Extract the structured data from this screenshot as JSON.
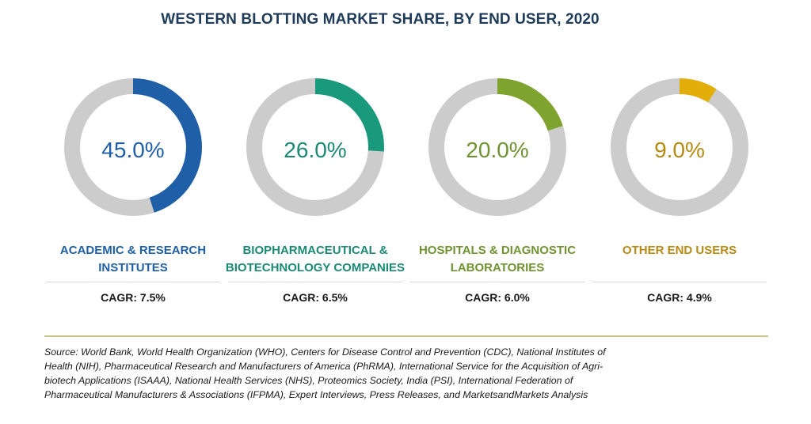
{
  "title": "WESTERN BLOTTING MARKET SHARE, BY END USER, 2020",
  "chart_data": {
    "type": "pie",
    "subtype": "donut",
    "title": "WESTERN BLOTTING MARKET SHARE, BY END USER, 2020",
    "unit": "%",
    "items": [
      {
        "label_lines": [
          "ACADEMIC & RESEARCH",
          "INSTITUTES"
        ],
        "value": 45.0,
        "value_text": "45.0%",
        "cagr": "CAGR: 7.5%",
        "color": "#1f5fa8"
      },
      {
        "label_lines": [
          "BIOPHARMACEUTICAL &",
          "BIOTECHNOLOGY COMPANIES"
        ],
        "value": 26.0,
        "value_text": "26.0%",
        "cagr": "CAGR: 6.5%",
        "color": "#1a9a7c"
      },
      {
        "label_lines": [
          "HOSPITALS & DIAGNOSTIC",
          "LABORATORIES"
        ],
        "value": 20.0,
        "value_text": "20.0%",
        "cagr": "CAGR: 6.0%",
        "color": "#7fa32f"
      },
      {
        "label_lines": [
          "OTHER END USERS"
        ],
        "value": 9.0,
        "value_text": "9.0%",
        "cagr": "CAGR: 4.9%",
        "color": "#e3ad0a"
      }
    ],
    "track_color": "#cccccc",
    "text_colors": [
      "#1f5fa8",
      "#1a8a74",
      "#6f9330",
      "#b68a12"
    ]
  },
  "source": {
    "lines": [
      "Source: World Bank, World Health Organization (WHO), Centers for Disease Control and Prevention (CDC), National Institutes of",
      "Health (NIH), Pharmaceutical Research and Manufacturers of America (PhRMA), International Service for the Acquisition of Agri-",
      "biotech Applications (ISAAA), National Health Services (NHS), Proteomics Society, India (PSI), International Federation of",
      "Pharmaceutical Manufacturers & Associations (IFPMA), Expert Interviews, Press Releases, and MarketsandMarkets Analysis"
    ]
  }
}
